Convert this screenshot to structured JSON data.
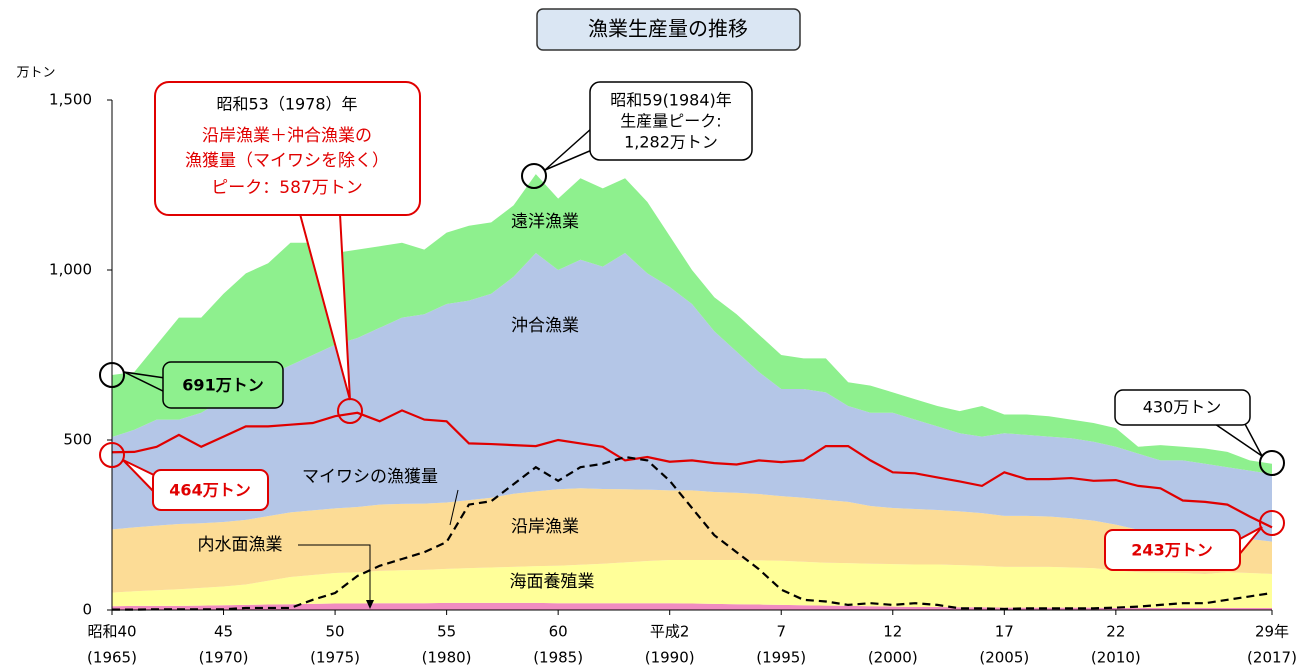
{
  "chart_data": {
    "type": "area",
    "title": "漁業生産量の推移",
    "y_unit": "万トン",
    "x": [
      1965,
      1966,
      1967,
      1968,
      1969,
      1970,
      1971,
      1972,
      1973,
      1974,
      1975,
      1976,
      1977,
      1978,
      1979,
      1980,
      1981,
      1982,
      1983,
      1984,
      1985,
      1986,
      1987,
      1988,
      1989,
      1990,
      1991,
      1992,
      1993,
      1994,
      1995,
      1996,
      1997,
      1998,
      1999,
      2000,
      2001,
      2002,
      2003,
      2004,
      2005,
      2006,
      2007,
      2008,
      2009,
      2010,
      2011,
      2012,
      2013,
      2014,
      2015,
      2016,
      2017
    ],
    "xlim": [
      1965,
      2017
    ],
    "xticks": [
      {
        "value": 1965,
        "label": "昭和40"
      },
      {
        "value": 1970,
        "label": "45"
      },
      {
        "value": 1975,
        "label": "50"
      },
      {
        "value": 1980,
        "label": "55"
      },
      {
        "value": 1985,
        "label": "60"
      },
      {
        "value": 1990,
        "label": "平成2"
      },
      {
        "value": 1995,
        "label": "7"
      },
      {
        "value": 2000,
        "label": "12"
      },
      {
        "value": 2005,
        "label": "17"
      },
      {
        "value": 2010,
        "label": "22"
      },
      {
        "value": 2017,
        "label": "29年"
      }
    ],
    "xtick_sublabels": [
      "(1965)",
      "(1970)",
      "(1975)",
      "(1980)",
      "(1985)",
      "(1990)",
      "(1995)",
      "(2000)",
      "(2005)",
      "(2010)",
      "(2017)"
    ],
    "ylim": [
      0,
      1500
    ],
    "yticks": [
      0,
      500,
      {
        "value": 1000,
        "label": "1,000"
      },
      {
        "value": 1500,
        "label": "1,500"
      }
    ],
    "series": [
      {
        "name": "内水面漁業",
        "color": "#f08cc0",
        "values": [
          11,
          12,
          12,
          12,
          13,
          14,
          15,
          16,
          17,
          18,
          19,
          19,
          20,
          20,
          20,
          21,
          21,
          21,
          21,
          21,
          20,
          20,
          20,
          20,
          20,
          20,
          19,
          18,
          17,
          16,
          15,
          14,
          13,
          12,
          11,
          10,
          9,
          9,
          8,
          8,
          7,
          7,
          7,
          7,
          7,
          6,
          6,
          6,
          6,
          6,
          6,
          6,
          6
        ]
      },
      {
        "name": "海面養殖業",
        "color": "#ffff99",
        "values": [
          40,
          43,
          46,
          49,
          52,
          55,
          60,
          70,
          80,
          85,
          90,
          92,
          95,
          97,
          98,
          100,
          102,
          104,
          106,
          108,
          110,
          113,
          116,
          120,
          124,
          127,
          128,
          129,
          130,
          130,
          130,
          128,
          126,
          126,
          125,
          125,
          125,
          125,
          124,
          122,
          120,
          120,
          120,
          118,
          116,
          110,
          105,
          104,
          103,
          100,
          105,
          103,
          100
        ]
      },
      {
        "name": "沿岸漁業",
        "color": "#fcdc96",
        "values": [
          186,
          188,
          190,
          192,
          190,
          190,
          190,
          190,
          190,
          190,
          190,
          192,
          195,
          195,
          195,
          195,
          200,
          205,
          215,
          220,
          225,
          225,
          220,
          215,
          210,
          205,
          205,
          200,
          198,
          195,
          190,
          188,
          185,
          180,
          170,
          165,
          163,
          160,
          158,
          155,
          150,
          150,
          148,
          145,
          140,
          135,
          125,
          120,
          115,
          112,
          110,
          100,
          95
        ]
      },
      {
        "name": "沖合漁業",
        "color": "#b4c6e7",
        "values": [
          272,
          287,
          312,
          307,
          325,
          361,
          385,
          414,
          433,
          457,
          481,
          497,
          520,
          548,
          557,
          584,
          587,
          600,
          638,
          701,
          645,
          672,
          654,
          695,
          636,
          598,
          548,
          473,
          415,
          359,
          315,
          320,
          316,
          282,
          274,
          280,
          263,
          246,
          230,
          225,
          243,
          238,
          235,
          235,
          232,
          229,
          224,
          210,
          216,
          212,
          199,
          201,
          199
        ]
      },
      {
        "name": "遠洋漁業",
        "color": "#8ef08e",
        "values": [
          182,
          170,
          220,
          300,
          280,
          310,
          340,
          330,
          360,
          330,
          270,
          260,
          240,
          220,
          190,
          210,
          220,
          210,
          210,
          232,
          210,
          240,
          230,
          220,
          210,
          150,
          100,
          100,
          110,
          110,
          100,
          90,
          100,
          70,
          80,
          60,
          60,
          60,
          65,
          90,
          55,
          60,
          60,
          55,
          55,
          55,
          20,
          45,
          40,
          45,
          45,
          30,
          30
        ]
      },
      {
        "style": "line",
        "color": "#e00000",
        "values": [
          464,
          465,
          480,
          515,
          480,
          510,
          540,
          540,
          545,
          550,
          570,
          580,
          555,
          587,
          560,
          555,
          490,
          488,
          485,
          482,
          500,
          490,
          480,
          440,
          450,
          436,
          440,
          432,
          428,
          440,
          435,
          440,
          482,
          482,
          440,
          405,
          402,
          390,
          378,
          365,
          405,
          385,
          385,
          388,
          380,
          382,
          365,
          358,
          322,
          318,
          310,
          275,
          243
        ]
      },
      {
        "name": "マイワシの漁獲量",
        "style": "dashed",
        "color": "#000000",
        "values": [
          1,
          1,
          2,
          2,
          2,
          2,
          6,
          6,
          6,
          30,
          50,
          100,
          130,
          150,
          170,
          200,
          310,
          320,
          370,
          420,
          380,
          420,
          430,
          450,
          440,
          380,
          300,
          220,
          170,
          120,
          60,
          30,
          25,
          15,
          20,
          15,
          20,
          15,
          5,
          5,
          3,
          5,
          5,
          5,
          5,
          7,
          10,
          15,
          20,
          20,
          30,
          40,
          50
        ]
      }
    ],
    "annotations": {
      "peak_1978": [
        "昭和53（1978）年",
        "沿岸漁業＋沖合漁業の",
        "漁獲量（マイワシを除く）",
        "ピーク：587万トン"
      ],
      "peak_1984": [
        "昭和59(1984)年",
        "生産量ピーク:",
        "1,282万トン"
      ],
      "total_1965": "691万トン",
      "line_1965": "464万トン",
      "total_2017": "430万トン",
      "line_2017": "243万トン"
    }
  }
}
